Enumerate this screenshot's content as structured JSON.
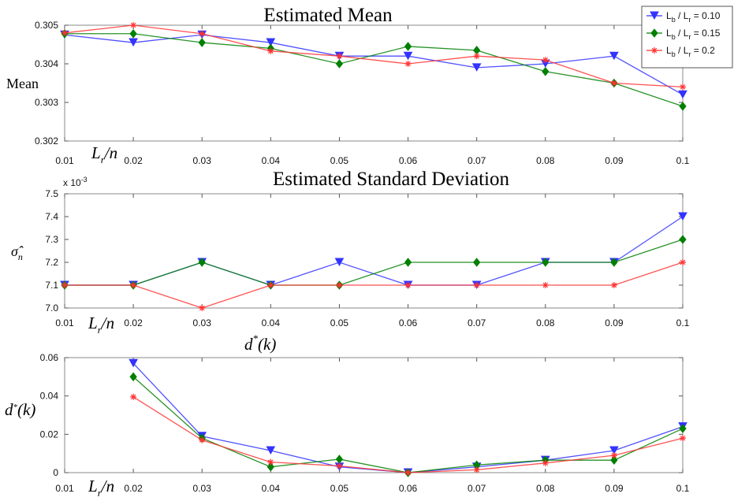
{
  "chart_data": [
    {
      "type": "line",
      "title": "Estimated Mean",
      "ylabel": "Mean",
      "xlabel": "L_r/n",
      "x": [
        0.01,
        0.02,
        0.03,
        0.04,
        0.05,
        0.06,
        0.07,
        0.08,
        0.09,
        0.1
      ],
      "x_tick_labels": [
        "0.01",
        "0.02",
        "0.03",
        "0.04",
        "0.05",
        "0.06",
        "0.07",
        "0.08",
        "0.09",
        "0.1"
      ],
      "ylim": [
        0.302,
        0.305
      ],
      "y_ticks": [
        0.302,
        0.303,
        0.304,
        0.305
      ],
      "y_tick_labels": [
        "0.302",
        "0.303",
        "0.304",
        "0.305"
      ],
      "legend_position": "top-right",
      "series": [
        {
          "name": "L_b / L_r = 0.10",
          "color": "#3333ff",
          "marker": "triangle-down",
          "values": [
            0.30475,
            0.30455,
            0.30475,
            0.30455,
            0.3042,
            0.3042,
            0.3039,
            0.304,
            0.3042,
            0.3032
          ]
        },
        {
          "name": "L_b / L_r = 0.15",
          "color": "#008000",
          "marker": "diamond",
          "values": [
            0.30478,
            0.30478,
            0.30455,
            0.3044,
            0.304,
            0.30445,
            0.30435,
            0.3038,
            0.3035,
            0.3029
          ]
        },
        {
          "name": "L_b / L_r = 0.2",
          "color": "#ff3333",
          "marker": "star",
          "values": [
            0.3048,
            0.305,
            0.30478,
            0.30433,
            0.3042,
            0.304,
            0.3042,
            0.3041,
            0.3035,
            0.3034
          ]
        }
      ]
    },
    {
      "type": "line",
      "title": "Estimated Standard Deviation",
      "ylabel": "σ̂_n",
      "xlabel": "L_r/n",
      "exponent_label": "x 10",
      "exponent_power": "-3",
      "x": [
        0.01,
        0.02,
        0.03,
        0.04,
        0.05,
        0.06,
        0.07,
        0.08,
        0.09,
        0.1
      ],
      "x_tick_labels": [
        "0.01",
        "0.02",
        "0.03",
        "0.04",
        "0.05",
        "0.06",
        "0.07",
        "0.08",
        "0.09",
        "0.1"
      ],
      "ylim": [
        7.0,
        7.5
      ],
      "y_ticks": [
        7.0,
        7.1,
        7.2,
        7.3,
        7.4,
        7.5
      ],
      "y_tick_labels": [
        "7.0",
        "7.1",
        "7.2",
        "7.3",
        "7.4",
        "7.5"
      ],
      "series": [
        {
          "name": "L_b / L_r = 0.10",
          "color": "#3333ff",
          "marker": "triangle-down",
          "values": [
            7.1,
            7.1,
            7.2,
            7.1,
            7.2,
            7.1,
            7.1,
            7.2,
            7.2,
            7.4
          ]
        },
        {
          "name": "L_b / L_r = 0.15",
          "color": "#008000",
          "marker": "diamond",
          "values": [
            7.1,
            7.1,
            7.2,
            7.1,
            7.1,
            7.2,
            7.2,
            7.2,
            7.2,
            7.3
          ]
        },
        {
          "name": "L_b / L_r = 0.2",
          "color": "#ff3333",
          "marker": "star",
          "values": [
            7.1,
            7.1,
            7.0,
            7.1,
            7.1,
            7.1,
            7.1,
            7.1,
            7.1,
            7.2
          ]
        }
      ]
    },
    {
      "type": "line",
      "title": "d*(k)",
      "ylabel": "d*(k)",
      "xlabel": "L_r/n",
      "x": [
        0.01,
        0.02,
        0.03,
        0.04,
        0.05,
        0.06,
        0.07,
        0.08,
        0.09,
        0.1
      ],
      "x_tick_labels": [
        "0.01",
        "0.02",
        "0.03",
        "0.04",
        "0.05",
        "0.06",
        "0.07",
        "0.08",
        "0.09",
        "0.1"
      ],
      "ylim": [
        0,
        0.06
      ],
      "y_ticks": [
        0,
        0.02,
        0.04,
        0.06
      ],
      "y_tick_labels": [
        "0",
        "0.02",
        "0.04",
        "0.06"
      ],
      "series": [
        {
          "name": "L_b / L_r = 0.10",
          "color": "#3333ff",
          "marker": "triangle-down",
          "values": [
            null,
            0.057,
            0.019,
            0.0115,
            0.003,
            0.0,
            0.003,
            0.0065,
            0.0115,
            0.024
          ]
        },
        {
          "name": "L_b / L_r = 0.15",
          "color": "#008000",
          "marker": "diamond",
          "values": [
            null,
            0.05,
            0.018,
            0.003,
            0.007,
            0.0,
            0.004,
            0.0065,
            0.0065,
            0.023
          ]
        },
        {
          "name": "L_b / L_r = 0.2",
          "color": "#ff3333",
          "marker": "star",
          "values": [
            null,
            0.0395,
            0.017,
            0.0055,
            0.0035,
            0.0,
            0.0015,
            0.005,
            0.009,
            0.018
          ]
        }
      ]
    }
  ],
  "legend": [
    {
      "base": "L",
      "sub1": "b",
      "mid": " / L",
      "sub2": "r",
      "tail": " = 0.10",
      "color": "#3333ff",
      "marker": "triangle-down"
    },
    {
      "base": "L",
      "sub1": "b",
      "mid": " / L",
      "sub2": "r",
      "tail": " = 0.15",
      "color": "#008000",
      "marker": "diamond"
    },
    {
      "base": "L",
      "sub1": "b",
      "mid": " / L",
      "sub2": "r",
      "tail": " = 0.2",
      "color": "#ff3333",
      "marker": "star"
    }
  ]
}
